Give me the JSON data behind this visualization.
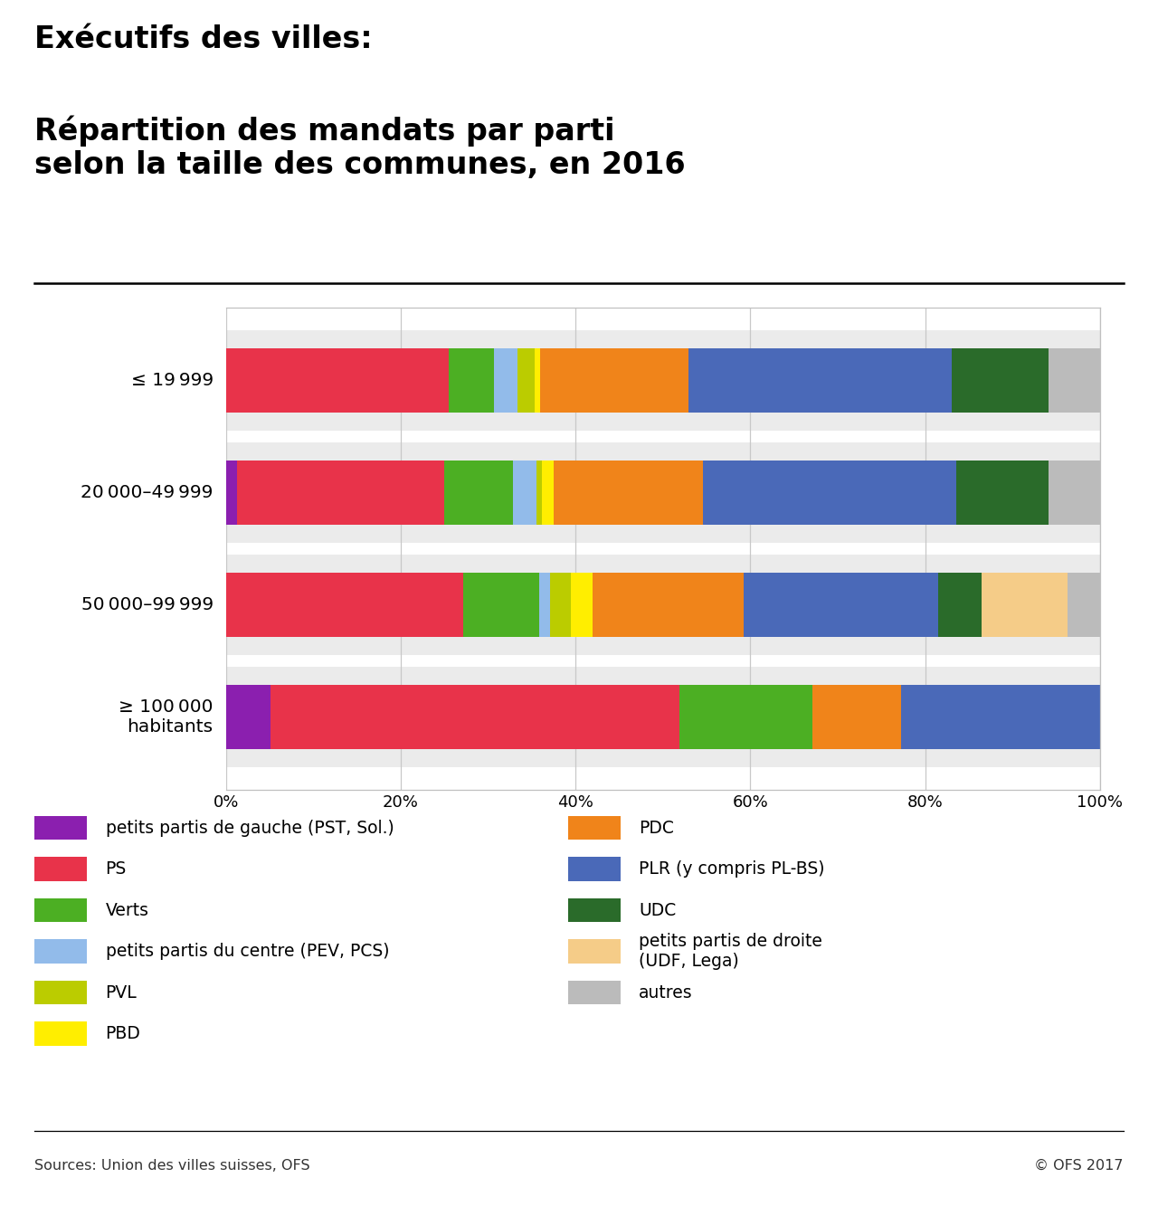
{
  "title_line1": "Exécutifs des villes:",
  "title_line2": "Répartition des mandats par parti\nselon la taille des communes, en 2016",
  "categories": [
    "≤ 19 999",
    "20 000–49 999",
    "50 000–99 999",
    "≥ 100 000\nhabitants"
  ],
  "parties": [
    "petits_gauche",
    "PS",
    "Verts",
    "centre",
    "PVL",
    "PBD",
    "PDC",
    "PLR",
    "UDC",
    "petits_droite",
    "autres"
  ],
  "colors": {
    "petits_gauche": "#8B1FAF",
    "PS": "#E8334A",
    "Verts": "#4CAF23",
    "centre": "#92BBEA",
    "PVL": "#BBCC00",
    "PBD": "#FFEE00",
    "PDC": "#F0841A",
    "PLR": "#4A69B8",
    "UDC": "#2A6B2A",
    "petits_droite": "#F5CC88",
    "autres": "#BBBBBB"
  },
  "legend_labels": {
    "petits_gauche": "petits partis de gauche (PST, Sol.)",
    "PS": "PS",
    "Verts": "Verts",
    "centre": "petits partis du centre (PEV, PCS)",
    "PVL": "PVL",
    "PBD": "PBD",
    "PDC": "PDC",
    "PLR": "PLR (y compris PL-BS)",
    "UDC": "UDC",
    "petits_droite": "petits partis de droite\n(UDF, Lega)",
    "autres": "autres"
  },
  "data_rows": [
    [
      0.0,
      19.5,
      4.0,
      2.0,
      1.5,
      0.5,
      13.0,
      23.0,
      8.5,
      0.0,
      4.5
    ],
    [
      1.0,
      18.0,
      6.0,
      2.0,
      0.5,
      1.0,
      13.0,
      22.0,
      8.0,
      0.0,
      4.5
    ],
    [
      0.0,
      22.0,
      7.0,
      1.0,
      2.0,
      2.0,
      14.0,
      18.0,
      4.0,
      8.0,
      3.0
    ],
    [
      4.0,
      37.0,
      12.0,
      0.0,
      0.0,
      0.0,
      8.0,
      18.0,
      0.0,
      0.0,
      0.0
    ]
  ],
  "source": "Sources: Union des villes suisses, OFS",
  "copyright": "© OFS 2017",
  "bg": "#FFFFFF",
  "bar_bg": "#EBEBEB",
  "grid_color": "#C8C8C8",
  "frame_color": "#C0C0C0"
}
